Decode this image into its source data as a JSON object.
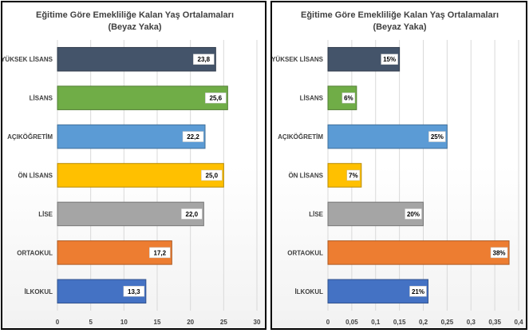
{
  "chart_data": [
    {
      "type": "bar",
      "orientation": "horizontal",
      "title": "Eğitime Göre Emekliliğe Kalan Yaş Ortalamaları",
      "subtitle": "(Beyaz Yaka)",
      "categories": [
        "YÜKSEK LİSANS",
        "LİSANS",
        "AÇIKÖĞRETİM",
        "ÖN LİSANS",
        "LİSE",
        "ORTAOKUL",
        "İLKOKUL"
      ],
      "values": [
        23.8,
        25.6,
        22.2,
        25.0,
        22.0,
        17.2,
        13.3
      ],
      "value_labels": [
        "23,8",
        "25,6",
        "22,2",
        "25,0",
        "22,0",
        "17,2",
        "13,3"
      ],
      "colors": [
        "#44546A",
        "#70AD47",
        "#5B9BD5",
        "#FFC000",
        "#A5A5A5",
        "#ED7D31",
        "#4472C4"
      ],
      "xlim": [
        0,
        30
      ],
      "xticks": [
        0,
        5,
        10,
        15,
        20,
        25,
        30
      ],
      "xtick_labels": [
        "0",
        "5",
        "10",
        "15",
        "20",
        "25",
        "30"
      ],
      "grid": "vertical",
      "xlabel": "",
      "ylabel": ""
    },
    {
      "type": "bar",
      "orientation": "horizontal",
      "title": "Eğitime Göre Emekliliğe Kalan Yaş Ortalamaları",
      "subtitle": "(Beyaz Yaka)",
      "categories": [
        "YÜKSEK LİSANS",
        "LİSANS",
        "AÇIKÖĞRETİM",
        "ÖN LİSANS",
        "LİSE",
        "ORTAOKUL",
        "İLKOKUL"
      ],
      "values": [
        0.15,
        0.06,
        0.25,
        0.07,
        0.2,
        0.38,
        0.21
      ],
      "value_labels": [
        "15%",
        "6%",
        "25%",
        "7%",
        "20%",
        "38%",
        "21%"
      ],
      "colors": [
        "#44546A",
        "#70AD47",
        "#5B9BD5",
        "#FFC000",
        "#A5A5A5",
        "#ED7D31",
        "#4472C4"
      ],
      "xlim": [
        0,
        0.4
      ],
      "xticks": [
        0,
        0.05,
        0.1,
        0.15,
        0.2,
        0.25,
        0.3,
        0.35,
        0.4
      ],
      "xtick_labels": [
        "0",
        "0,05",
        "0,1",
        "0,15",
        "0,2",
        "0,25",
        "0,3",
        "0,35",
        "0,4"
      ],
      "grid": "vertical",
      "xlabel": "",
      "ylabel": ""
    }
  ]
}
